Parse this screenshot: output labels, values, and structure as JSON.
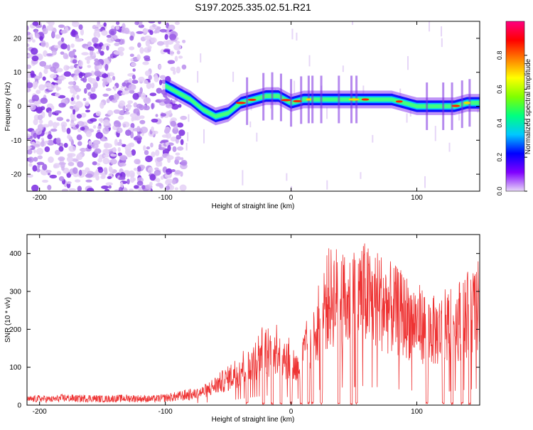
{
  "title": "S197.2025.335.02.51.R21",
  "chart_data": [
    {
      "type": "heatmap",
      "title": "S197.2025.335.02.51.R21",
      "xlabel": "Height of straight line (km)",
      "ylabel": "Frequency (Hz)",
      "xlim": [
        -210,
        150
      ],
      "ylim": [
        -25,
        25
      ],
      "xticks": [
        -200,
        -100,
        0,
        100
      ],
      "yticks": [
        -20,
        -10,
        0,
        10,
        20
      ],
      "colorbar": {
        "label": "Normalized spectral amplitude",
        "range": [
          0,
          1
        ],
        "ticks": [
          0.0,
          0.2,
          0.4,
          0.6,
          0.8
        ],
        "tick_labels": [
          "0.0",
          "0.2",
          "0.4",
          "0.6",
          "0.8"
        ],
        "colors": [
          "#e8d8f8",
          "#8000ff",
          "#0000ff",
          "#00c8ff",
          "#00ff80",
          "#80ff00",
          "#ffff00",
          "#ff8000",
          "#ff0000",
          "#ff0080"
        ]
      },
      "ridge": {
        "x": [
          -100,
          -90,
          -80,
          -70,
          -60,
          -50,
          -40,
          -30,
          -20,
          -10,
          0,
          10,
          20,
          30,
          40,
          50,
          60,
          70,
          80,
          90,
          100,
          110,
          120,
          130,
          140,
          150
        ],
        "freq": [
          6,
          4,
          2,
          -1,
          -3,
          -2,
          1,
          2,
          3,
          3,
          1,
          2,
          2,
          2,
          2,
          2,
          2,
          2,
          2,
          1,
          0,
          0,
          0,
          0,
          1,
          1
        ]
      },
      "noise_region_x": [
        -210,
        -85
      ]
    },
    {
      "type": "line",
      "xlabel": "Height of straight line (km)",
      "ylabel": "SNR (10 * v/v)",
      "xlim": [
        -210,
        150
      ],
      "ylim": [
        0,
        450
      ],
      "xticks": [
        -200,
        -100,
        0,
        100
      ],
      "yticks": [
        0,
        100,
        200,
        300,
        400
      ],
      "series": [
        {
          "name": "SNR",
          "color": "#ee3333",
          "x": [
            -210,
            -200,
            -190,
            -180,
            -170,
            -160,
            -150,
            -140,
            -130,
            -120,
            -110,
            -100,
            -90,
            -80,
            -70,
            -60,
            -50,
            -40,
            -30,
            -20,
            -15,
            -10,
            -5,
            0,
            5,
            10,
            15,
            20,
            25,
            30,
            35,
            40,
            45,
            50,
            55,
            60,
            65,
            70,
            75,
            80,
            85,
            90,
            95,
            100,
            105,
            110,
            115,
            120,
            125,
            130,
            135,
            140,
            145,
            150
          ],
          "values": [
            15,
            18,
            16,
            20,
            18,
            19,
            17,
            18,
            19,
            18,
            17,
            20,
            24,
            30,
            40,
            60,
            80,
            110,
            140,
            170,
            160,
            180,
            150,
            130,
            110,
            150,
            200,
            240,
            290,
            320,
            330,
            310,
            300,
            320,
            340,
            330,
            310,
            320,
            300,
            290,
            280,
            270,
            260,
            250,
            240,
            230,
            220,
            230,
            240,
            250,
            260,
            270,
            280,
            300
          ]
        }
      ],
      "dropouts_x": [
        -35,
        -22,
        -15,
        -8,
        0,
        8,
        14,
        17,
        24,
        38,
        48,
        52,
        108,
        121,
        128,
        136,
        142
      ]
    }
  ]
}
